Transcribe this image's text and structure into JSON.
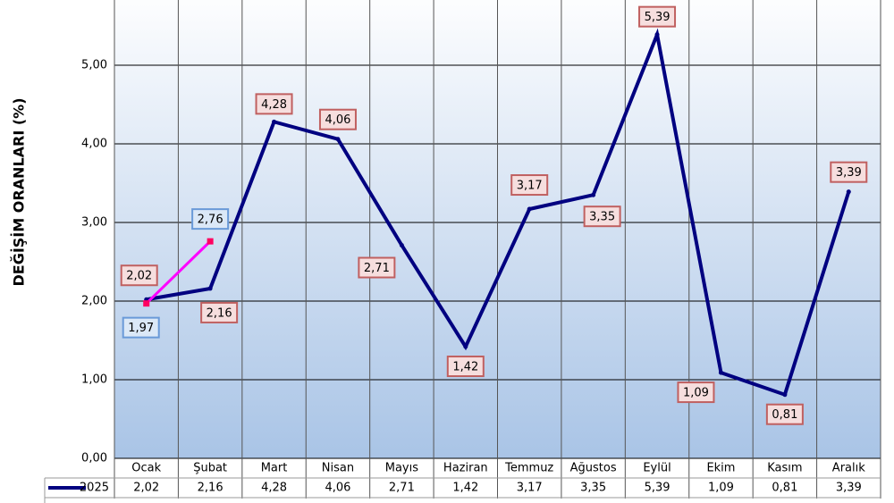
{
  "chart_data": {
    "type": "line",
    "y_label": "DEĞİŞİM ORANLARI (%)",
    "categories": [
      "Ocak",
      "Şubat",
      "Mart",
      "Nisan",
      "Mayıs",
      "Haziran",
      "Temmuz",
      "Ağustos",
      "Eylül",
      "Ekim",
      "Kasım",
      "Aralık"
    ],
    "series": [
      {
        "name": "2025",
        "color": "#000080",
        "values": [
          2.02,
          2.16,
          4.28,
          4.06,
          2.71,
          1.42,
          3.17,
          3.35,
          5.39,
          1.09,
          0.81,
          3.39
        ],
        "value_labels": [
          "2,02",
          "2,16",
          "4,28",
          "4,06",
          "2,71",
          "1,42",
          "3,17",
          "3,35",
          "5,39",
          "1,09",
          "0,81",
          "3,39"
        ]
      },
      {
        "color": "#ff00ff",
        "values": [
          1.97,
          2.76,
          null,
          null,
          null,
          null,
          null,
          null,
          null,
          null,
          null,
          null
        ],
        "value_labels": [
          "1,97",
          "2,76",
          null,
          null,
          null,
          null,
          null,
          null,
          null,
          null,
          null,
          null
        ]
      }
    ],
    "ylim": [
      0,
      6
    ],
    "yticks": [
      {
        "value": 0,
        "label": "0,00"
      },
      {
        "value": 1,
        "label": "1,00"
      },
      {
        "value": 2,
        "label": "2,00"
      },
      {
        "value": 3,
        "label": "3,00"
      },
      {
        "value": 4,
        "label": "4,00"
      },
      {
        "value": 5,
        "label": "5,00"
      }
    ],
    "grid": true
  }
}
